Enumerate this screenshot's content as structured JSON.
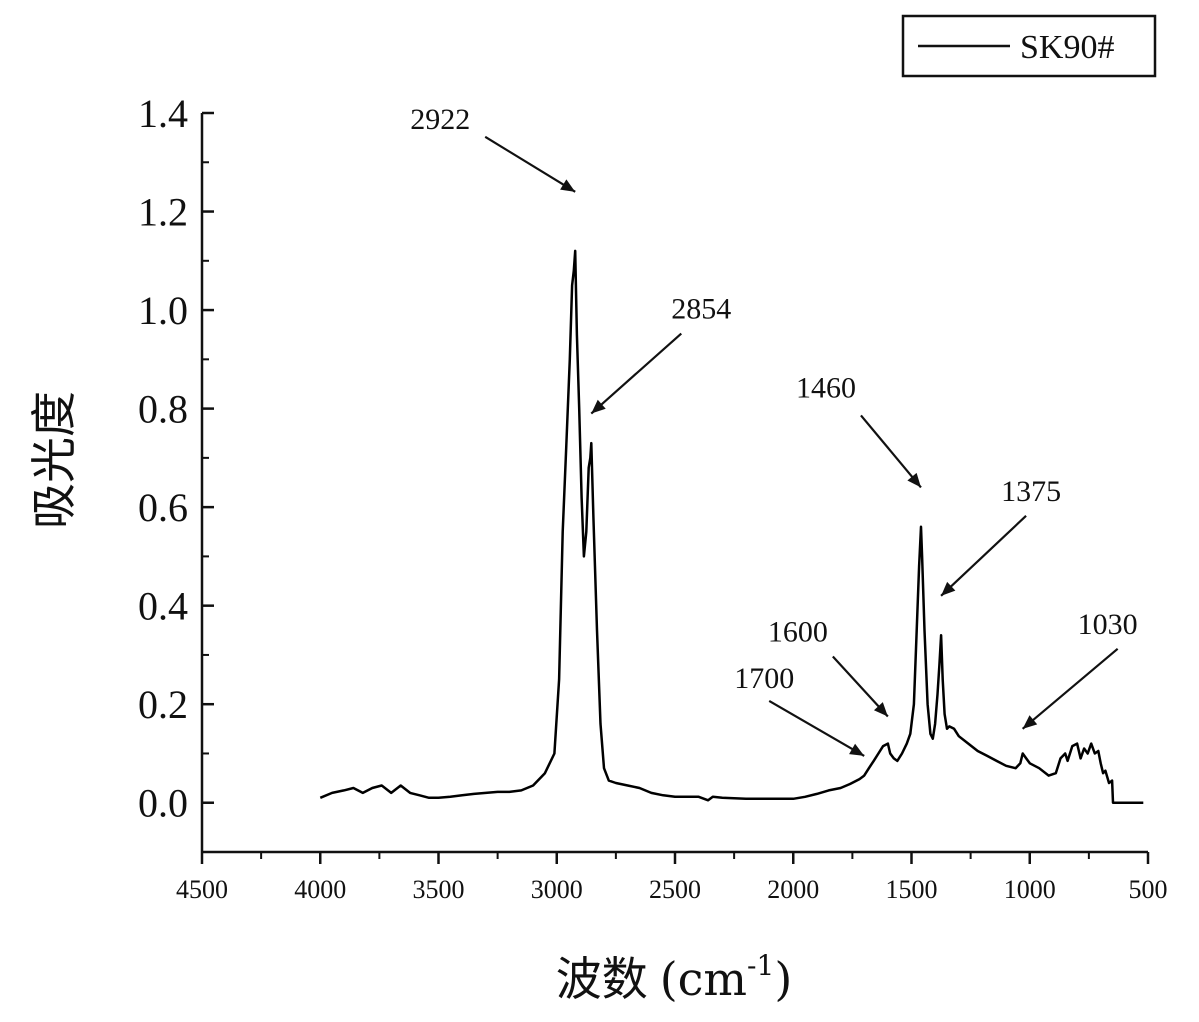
{
  "chart_data": {
    "type": "line",
    "xlabel": "波数",
    "xlabel_unit": "(cm-1)",
    "xlabel_unit_base": "(cm",
    "xlabel_unit_sup": "-1",
    "xlabel_unit_close": ")",
    "ylabel": "吸光度",
    "xlim": [
      4500,
      500
    ],
    "ylim": [
      -0.1,
      1.4
    ],
    "x_reversed": true,
    "x_ticks": [
      "4500",
      "4000",
      "3500",
      "3000",
      "2500",
      "2000",
      "1500",
      "1000",
      "500"
    ],
    "y_ticks": [
      "0.0",
      "0.2",
      "0.4",
      "0.6",
      "0.8",
      "1.0",
      "1.2",
      "1.4"
    ],
    "grid": false,
    "legend_position": "top-right",
    "series": [
      {
        "name": "SK90#",
        "color": "#000000",
        "points": [
          [
            4000,
            0.01
          ],
          [
            3950,
            0.02
          ],
          [
            3900,
            0.025
          ],
          [
            3860,
            0.03
          ],
          [
            3820,
            0.02
          ],
          [
            3780,
            0.03
          ],
          [
            3740,
            0.035
          ],
          [
            3700,
            0.02
          ],
          [
            3660,
            0.035
          ],
          [
            3620,
            0.02
          ],
          [
            3580,
            0.015
          ],
          [
            3540,
            0.01
          ],
          [
            3500,
            0.01
          ],
          [
            3450,
            0.012
          ],
          [
            3400,
            0.015
          ],
          [
            3350,
            0.018
          ],
          [
            3300,
            0.02
          ],
          [
            3250,
            0.022
          ],
          [
            3200,
            0.022
          ],
          [
            3150,
            0.025
          ],
          [
            3100,
            0.035
          ],
          [
            3050,
            0.06
          ],
          [
            3010,
            0.1
          ],
          [
            2990,
            0.25
          ],
          [
            2975,
            0.55
          ],
          [
            2960,
            0.72
          ],
          [
            2945,
            0.9
          ],
          [
            2935,
            1.05
          ],
          [
            2928,
            1.08
          ],
          [
            2922,
            1.12
          ],
          [
            2915,
            0.95
          ],
          [
            2905,
            0.8
          ],
          [
            2895,
            0.62
          ],
          [
            2885,
            0.5
          ],
          [
            2875,
            0.55
          ],
          [
            2865,
            0.68
          ],
          [
            2858,
            0.7
          ],
          [
            2854,
            0.73
          ],
          [
            2845,
            0.58
          ],
          [
            2830,
            0.35
          ],
          [
            2815,
            0.16
          ],
          [
            2800,
            0.07
          ],
          [
            2780,
            0.045
          ],
          [
            2750,
            0.04
          ],
          [
            2700,
            0.035
          ],
          [
            2650,
            0.03
          ],
          [
            2600,
            0.02
          ],
          [
            2550,
            0.015
          ],
          [
            2500,
            0.012
          ],
          [
            2450,
            0.012
          ],
          [
            2400,
            0.012
          ],
          [
            2360,
            0.005
          ],
          [
            2340,
            0.012
          ],
          [
            2300,
            0.01
          ],
          [
            2200,
            0.008
          ],
          [
            2100,
            0.008
          ],
          [
            2000,
            0.008
          ],
          [
            1950,
            0.012
          ],
          [
            1900,
            0.018
          ],
          [
            1850,
            0.025
          ],
          [
            1800,
            0.03
          ],
          [
            1760,
            0.038
          ],
          [
            1720,
            0.048
          ],
          [
            1700,
            0.055
          ],
          [
            1680,
            0.07
          ],
          [
            1660,
            0.085
          ],
          [
            1640,
            0.1
          ],
          [
            1620,
            0.115
          ],
          [
            1600,
            0.12
          ],
          [
            1590,
            0.1
          ],
          [
            1575,
            0.09
          ],
          [
            1560,
            0.085
          ],
          [
            1540,
            0.1
          ],
          [
            1520,
            0.12
          ],
          [
            1505,
            0.14
          ],
          [
            1490,
            0.2
          ],
          [
            1478,
            0.35
          ],
          [
            1468,
            0.48
          ],
          [
            1460,
            0.56
          ],
          [
            1455,
            0.5
          ],
          [
            1445,
            0.35
          ],
          [
            1432,
            0.2
          ],
          [
            1420,
            0.14
          ],
          [
            1410,
            0.13
          ],
          [
            1400,
            0.16
          ],
          [
            1390,
            0.22
          ],
          [
            1382,
            0.28
          ],
          [
            1375,
            0.34
          ],
          [
            1368,
            0.25
          ],
          [
            1360,
            0.18
          ],
          [
            1350,
            0.15
          ],
          [
            1340,
            0.155
          ],
          [
            1320,
            0.15
          ],
          [
            1300,
            0.135
          ],
          [
            1260,
            0.12
          ],
          [
            1220,
            0.105
          ],
          [
            1180,
            0.095
          ],
          [
            1140,
            0.085
          ],
          [
            1100,
            0.075
          ],
          [
            1060,
            0.07
          ],
          [
            1040,
            0.08
          ],
          [
            1030,
            0.1
          ],
          [
            1015,
            0.09
          ],
          [
            1000,
            0.08
          ],
          [
            960,
            0.07
          ],
          [
            920,
            0.055
          ],
          [
            890,
            0.06
          ],
          [
            870,
            0.09
          ],
          [
            850,
            0.1
          ],
          [
            840,
            0.085
          ],
          [
            820,
            0.115
          ],
          [
            800,
            0.12
          ],
          [
            785,
            0.09
          ],
          [
            770,
            0.11
          ],
          [
            755,
            0.1
          ],
          [
            740,
            0.12
          ],
          [
            725,
            0.1
          ],
          [
            710,
            0.105
          ],
          [
            700,
            0.08
          ],
          [
            690,
            0.06
          ],
          [
            680,
            0.065
          ],
          [
            665,
            0.04
          ],
          [
            652,
            0.045
          ],
          [
            648,
            0.0
          ],
          [
            600,
            0.0
          ],
          [
            550,
            0.0
          ],
          [
            520,
            0.0
          ]
        ]
      }
    ],
    "annotations": [
      {
        "label": "2922",
        "arrow_to": [
          2922,
          1.24
        ]
      },
      {
        "label": "2854",
        "arrow_to": [
          2854,
          0.79
        ]
      },
      {
        "label": "1460",
        "arrow_to": [
          1460,
          0.64
        ]
      },
      {
        "label": "1375",
        "arrow_to": [
          1375,
          0.42
        ]
      },
      {
        "label": "1700",
        "arrow_to": [
          1700,
          0.095
        ]
      },
      {
        "label": "1600",
        "arrow_to": [
          1600,
          0.175
        ]
      },
      {
        "label": "1030",
        "arrow_to": [
          1030,
          0.15
        ]
      }
    ]
  }
}
